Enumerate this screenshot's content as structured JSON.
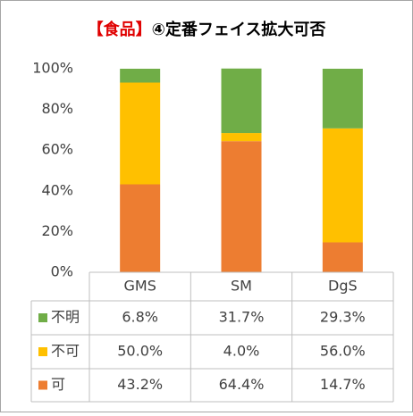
{
  "chart_data": {
    "type": "stacked_bar",
    "title_tag": "【食品】",
    "title": "④定番フェイス拡大可否",
    "categories": [
      "GMS",
      "SM",
      "DgS"
    ],
    "series": [
      {
        "name": "不明",
        "color": "#70ad47",
        "values": [
          6.8,
          31.7,
          29.3
        ],
        "value_labels": [
          "6.8%",
          "31.7%",
          "29.3%"
        ]
      },
      {
        "name": "不可",
        "color": "#ffc000",
        "values": [
          50.0,
          4.0,
          56.0
        ],
        "value_labels": [
          "50.0%",
          "4.0%",
          "56.0%"
        ]
      },
      {
        "name": "可",
        "color": "#ed7d31",
        "values": [
          43.2,
          64.4,
          14.7
        ],
        "value_labels": [
          "43.2%",
          "64.4%",
          "14.7%"
        ]
      }
    ],
    "ylim": [
      0,
      100
    ],
    "yticks": [
      {
        "value": 0,
        "label": "0%"
      },
      {
        "value": 20,
        "label": "20%"
      },
      {
        "value": 40,
        "label": "40%"
      },
      {
        "value": 60,
        "label": "60%"
      },
      {
        "value": 80,
        "label": "80%"
      },
      {
        "value": 100,
        "label": "100%"
      }
    ]
  }
}
